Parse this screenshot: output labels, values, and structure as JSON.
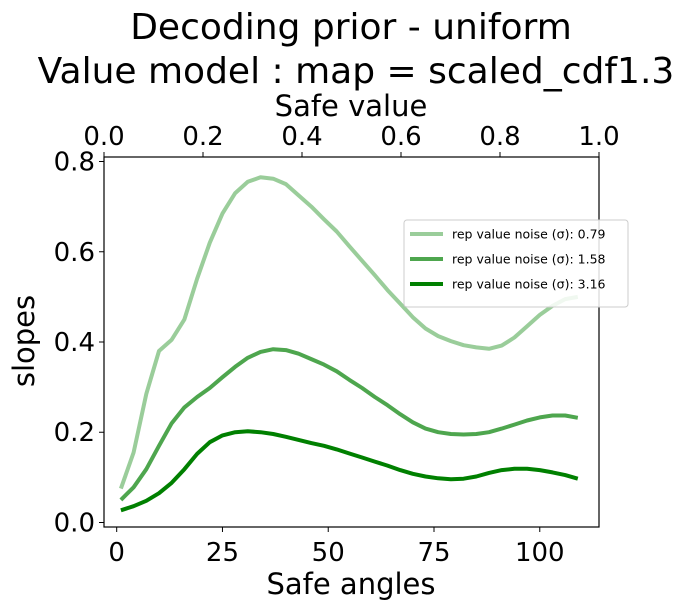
{
  "chart_data": {
    "type": "line",
    "title_line1": "Decoding prior - uniform",
    "title_line2": "Value model : map = scaled_cdf1.3",
    "xlabel": "Safe angles",
    "ylabel": "slopes",
    "top_xlabel": "Safe value",
    "xlim": [
      -3,
      114
    ],
    "ylim": [
      -0.01,
      0.81
    ],
    "top_xlim": [
      0.0,
      1.0
    ],
    "x_ticks": [
      0,
      25,
      50,
      75,
      100
    ],
    "x_tick_labels": [
      "0",
      "25",
      "50",
      "75",
      "100"
    ],
    "y_ticks": [
      0.0,
      0.2,
      0.4,
      0.6,
      0.8
    ],
    "y_tick_labels": [
      "0.0",
      "0.2",
      "0.4",
      "0.6",
      "0.8"
    ],
    "top_ticks": [
      0.0,
      0.2,
      0.4,
      0.6,
      0.8,
      1.0
    ],
    "top_tick_labels": [
      "0.0",
      "0.2",
      "0.4",
      "0.6",
      "0.8",
      "1.0"
    ],
    "grid": false,
    "legend_position": "right",
    "series": [
      {
        "name": "rep value noise (σ): 0.79",
        "color": "#9acd9a",
        "x": [
          1,
          4,
          7,
          10,
          13,
          16,
          19,
          22,
          25,
          28,
          31,
          34,
          37,
          40,
          43,
          46,
          49,
          52,
          55,
          58,
          61,
          64,
          67,
          70,
          73,
          76,
          79,
          82,
          85,
          88,
          91,
          94,
          97,
          100,
          103,
          106,
          109
        ],
        "values": [
          0.075,
          0.155,
          0.285,
          0.38,
          0.405,
          0.45,
          0.54,
          0.62,
          0.685,
          0.73,
          0.755,
          0.765,
          0.762,
          0.75,
          0.725,
          0.7,
          0.672,
          0.645,
          0.612,
          0.58,
          0.548,
          0.515,
          0.485,
          0.455,
          0.43,
          0.413,
          0.402,
          0.393,
          0.388,
          0.385,
          0.392,
          0.41,
          0.435,
          0.46,
          0.48,
          0.495,
          0.5
        ]
      },
      {
        "name": "rep value noise (σ): 1.58",
        "color": "#4ea64e",
        "x": [
          1,
          4,
          7,
          10,
          13,
          16,
          19,
          22,
          25,
          28,
          31,
          34,
          37,
          40,
          43,
          46,
          49,
          52,
          55,
          58,
          61,
          64,
          67,
          70,
          73,
          76,
          79,
          82,
          85,
          88,
          91,
          94,
          97,
          100,
          103,
          106,
          109
        ],
        "values": [
          0.05,
          0.078,
          0.118,
          0.17,
          0.22,
          0.255,
          0.278,
          0.298,
          0.322,
          0.345,
          0.365,
          0.378,
          0.384,
          0.382,
          0.374,
          0.362,
          0.35,
          0.335,
          0.316,
          0.298,
          0.278,
          0.26,
          0.24,
          0.222,
          0.208,
          0.2,
          0.196,
          0.195,
          0.196,
          0.2,
          0.208,
          0.217,
          0.226,
          0.233,
          0.237,
          0.237,
          0.232
        ]
      },
      {
        "name": "rep value noise (σ): 3.16",
        "color": "#008000",
        "x": [
          1,
          4,
          7,
          10,
          13,
          16,
          19,
          22,
          25,
          28,
          31,
          34,
          37,
          40,
          43,
          46,
          49,
          52,
          55,
          58,
          61,
          64,
          67,
          70,
          73,
          76,
          79,
          82,
          85,
          88,
          91,
          94,
          97,
          100,
          103,
          106,
          109
        ],
        "values": [
          0.027,
          0.036,
          0.048,
          0.065,
          0.088,
          0.118,
          0.152,
          0.178,
          0.193,
          0.2,
          0.202,
          0.2,
          0.196,
          0.19,
          0.183,
          0.176,
          0.17,
          0.162,
          0.153,
          0.144,
          0.135,
          0.126,
          0.116,
          0.108,
          0.102,
          0.098,
          0.096,
          0.097,
          0.102,
          0.11,
          0.116,
          0.119,
          0.119,
          0.116,
          0.111,
          0.105,
          0.097
        ]
      }
    ]
  }
}
